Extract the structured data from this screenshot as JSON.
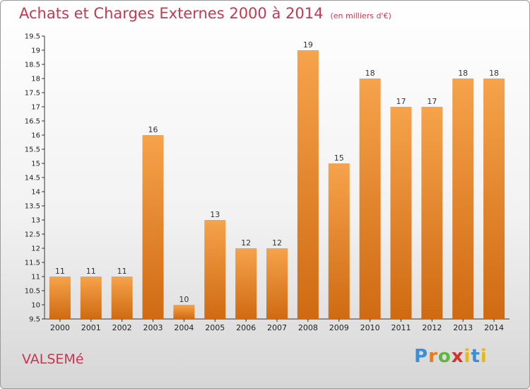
{
  "title": "Achats et Charges Externes 2000 à 2014",
  "subtitle": "(en milliers d'€)",
  "commune": "VALSEMé",
  "logo": {
    "p": "P",
    "r": "r",
    "o": "o",
    "x": "x",
    "i": "i",
    "t": "t",
    "i2": "i"
  },
  "colors": {
    "bar_light": "#f6a34b",
    "bar_dark": "#cf6a12",
    "title": "#c8364f"
  },
  "chart_data": {
    "type": "bar",
    "title": "Achats et Charges Externes 2000 à 2014",
    "subtitle": "(en milliers d'€)",
    "categories": [
      "2000",
      "2001",
      "2002",
      "2003",
      "2004",
      "2005",
      "2006",
      "2007",
      "2008",
      "2009",
      "2010",
      "2011",
      "2012",
      "2013",
      "2014"
    ],
    "values": [
      11,
      11,
      11,
      16,
      10,
      13,
      12,
      12,
      19,
      15,
      18,
      17,
      17,
      18,
      18
    ],
    "data_labels": [
      "11",
      "11",
      "11",
      "16",
      "10",
      "13",
      "12",
      "12",
      "19",
      "15",
      "18",
      "17",
      "17",
      "18",
      "18"
    ],
    "ylim": [
      9.5,
      19.5
    ],
    "yticks": [
      "9.5",
      "10",
      "10.5",
      "11",
      "11.5",
      "12",
      "12.5",
      "13",
      "13.5",
      "14",
      "14.5",
      "15",
      "15.5",
      "16",
      "16.5",
      "17",
      "17.5",
      "18",
      "18.5",
      "19",
      "19.5"
    ],
    "grid": false,
    "legend": "none"
  }
}
